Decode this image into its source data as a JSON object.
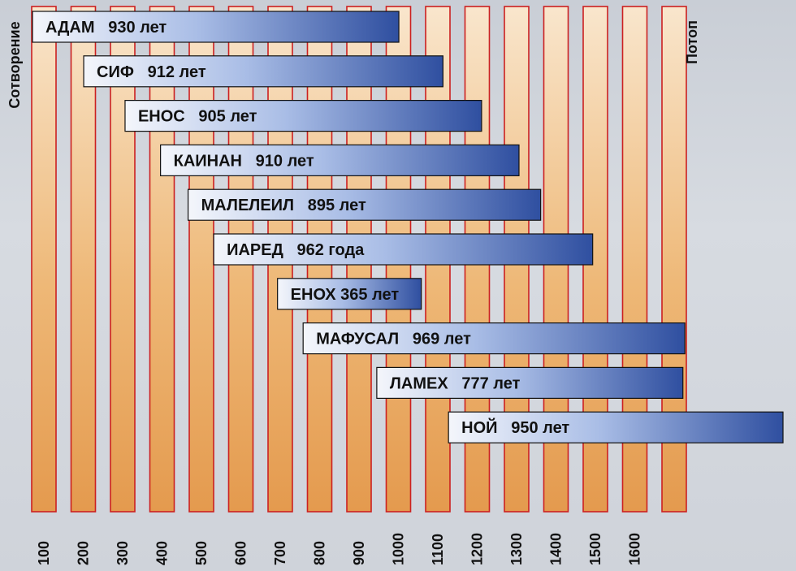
{
  "chart_data": {
    "type": "bar",
    "orientation": "horizontal-timeline",
    "xlim": [
      0,
      1700
    ],
    "x_ticks": [
      "100",
      "200",
      "300",
      "400",
      "500",
      "600",
      "700",
      "800",
      "900",
      "1000",
      "1100",
      "1200",
      "1300",
      "1400",
      "1500",
      "1600"
    ],
    "left_label": "Сотворение",
    "right_label": "Потоп",
    "series": [
      {
        "label": "АДАМ   930 лет",
        "start": 0,
        "end": 930
      },
      {
        "label": "СИФ   912 лет",
        "start": 130,
        "end": 1042
      },
      {
        "label": "ЕНОС   905 лет",
        "start": 235,
        "end": 1140
      },
      {
        "label": "КАИНАН   910 лет",
        "start": 325,
        "end": 1235
      },
      {
        "label": "МАЛЕЛЕИЛ   895 лет",
        "start": 395,
        "end": 1290
      },
      {
        "label": "ИАРЕД   962 года",
        "start": 460,
        "end": 1422
      },
      {
        "label": "ЕНОХ 365 лет",
        "start": 622,
        "end": 987
      },
      {
        "label": "МАФУСАЛ   969 лет",
        "start": 687,
        "end": 1656
      },
      {
        "label": "ЛАМЕХ   777 лет",
        "start": 874,
        "end": 1651
      },
      {
        "label": "НОЙ   950 лет",
        "start": 1056,
        "end": 2006
      }
    ],
    "colors": {
      "column_fill": "#e9a65c",
      "column_stroke": "#cc2020",
      "bar_start": "#f4f6fb",
      "bar_end": "#2f4fa0"
    }
  }
}
